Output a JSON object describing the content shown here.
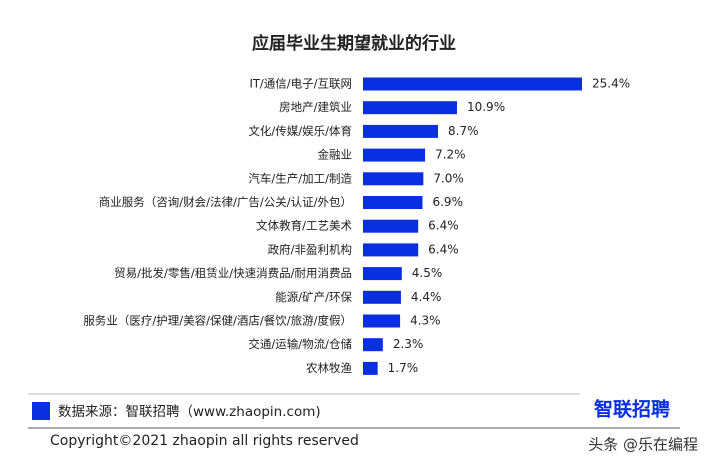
{
  "chart_data": {
    "type": "bar",
    "orientation": "horizontal",
    "title": "应届毕业生期望就业的行业",
    "categories": [
      "IT/通信/电子/互联网",
      "房地产/建筑业",
      "文化/传媒/娱乐/体育",
      "金融业",
      "汽车/生产/加工/制造",
      "商业服务（咨询/财会/法律/广告/公关/认证/外包）",
      "文体教育/工艺美术",
      "政府/非盈利机构",
      "贸易/批发/零售/租赁业/快速消费品/耐用消费品",
      "能源/矿产/环保",
      "服务业（医疗/护理/美容/保健/酒店/餐饮/旅游/度假）",
      "交通/运输/物流/仓储",
      "农林牧渔"
    ],
    "values": [
      25.4,
      10.9,
      8.7,
      7.2,
      7.0,
      6.9,
      6.4,
      6.4,
      4.5,
      4.4,
      4.3,
      2.3,
      1.7
    ],
    "value_labels": [
      "25.4%",
      "10.9%",
      "8.7%",
      "7.2%",
      "7.0%",
      "6.9%",
      "6.4%",
      "6.4%",
      "4.5%",
      "4.4%",
      "4.3%",
      "2.3%",
      "1.7%"
    ],
    "color": "#0a2fe0",
    "source": "数据来源：智联招聘（www.zhaopin.com)",
    "logo": "智联招聘",
    "copyright": "Copyright©2021 zhaopin all rights reserved",
    "watermark": "头条 @乐在编程"
  }
}
